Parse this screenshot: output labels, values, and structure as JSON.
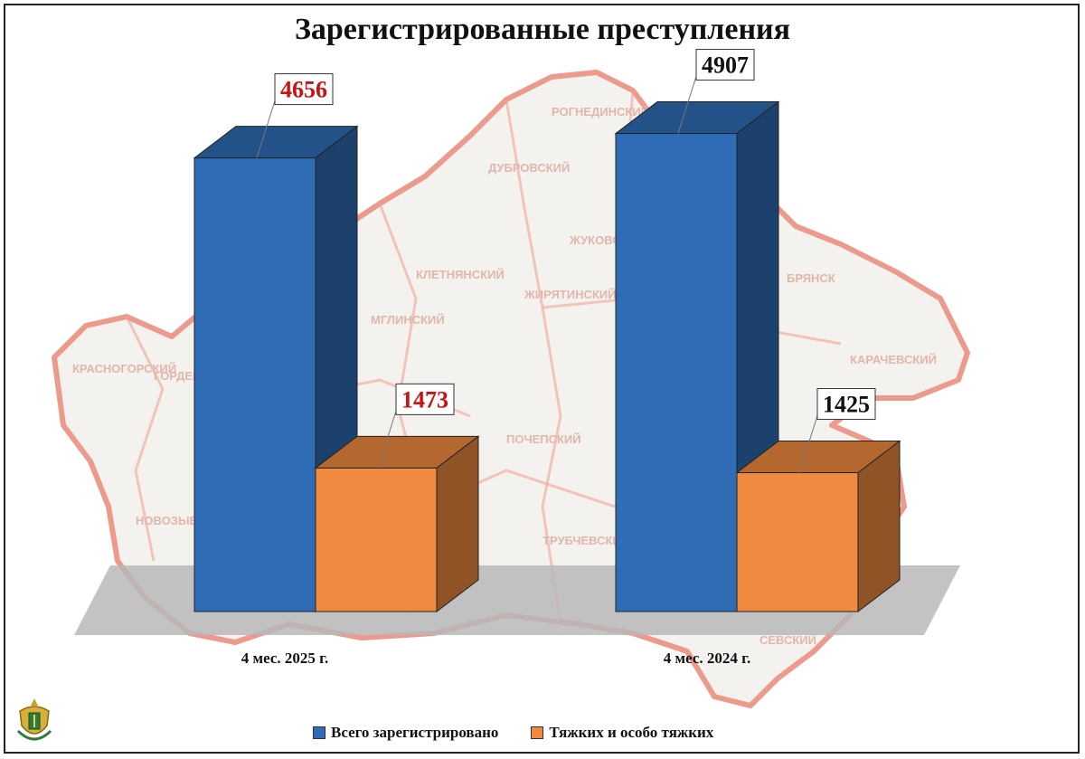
{
  "chart_data": {
    "type": "bar",
    "title": "Зарегистрированные преступления",
    "categories": [
      "4 мес. 2025 г.",
      "4 мес. 2024 г."
    ],
    "series": [
      {
        "name": "Всего зарегистрировано",
        "values": [
          4656,
          4907
        ],
        "color": "#2E6DB5"
      },
      {
        "name": "Тяжких и особо тяжких",
        "values": [
          1473,
          1425
        ],
        "color": "#F08A40"
      }
    ],
    "data_labels": [
      "4656",
      "1473",
      "4907",
      "1425"
    ],
    "data_label_colors": [
      "#cc1111",
      "#cc1111",
      "#111111",
      "#111111"
    ],
    "style_3d": true,
    "legend_position": "bottom",
    "background": "map of Bryansk region districts",
    "ylim": [
      0,
      5200
    ]
  },
  "map_labels": [
    "ДУБРОВСКИЙ",
    "РОГНЕДИНСКИЙ",
    "ЖУКОВСКИЙ",
    "КЛЕТНЯНСКИЙ",
    "ЖИРЯТИНСКИЙ",
    "МГЛИНСКИЙ",
    "ПОЧЕПСКИЙ",
    "КРАСНОГОРСКИЙ",
    "ГОРДЕЕВСКИЙ",
    "НОВОЗЫБКОВСКИЙ",
    "КАРАЧЕВСКИЙ",
    "ТРУБЧЕВСКИЙ",
    "СЕВСКИЙ",
    "БРЯНСК"
  ]
}
